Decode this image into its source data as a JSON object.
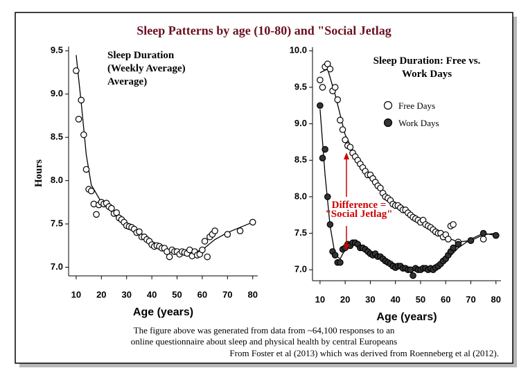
{
  "title": "Sleep Patterns by age (10-80) and \"Social Jetlag",
  "footnote": [
    "The figure above was generated from data from ~64,100 responses to an",
    "online questionnaire about sleep and physical health by central Europeans",
    "From Foster et al (2013) which was derived from Roenneberg et al (2012)."
  ],
  "chart_data": [
    {
      "type": "scatter",
      "annotation": [
        "Sleep Duration",
        "(Weekly Average)",
        "Average)"
      ],
      "ylabel": "Hours",
      "xlabel": "Age (years)",
      "xlim": [
        7,
        82
      ],
      "ylim": [
        6.9,
        9.55
      ],
      "xticks": [
        10,
        20,
        30,
        40,
        50,
        60,
        70,
        80
      ],
      "yticks": [
        {
          "value": 7,
          "label": "7.0"
        },
        7.5,
        {
          "value": 8,
          "label": "8.0"
        },
        8.5,
        {
          "value": 9,
          "label": "9.0"
        },
        9.5
      ],
      "series": [
        {
          "color": "#ffffff",
          "x": [
            10,
            11,
            12,
            13,
            14,
            15,
            16,
            17,
            18,
            19,
            20,
            21,
            22,
            23,
            24,
            25,
            26,
            27,
            28,
            29,
            30,
            31,
            32,
            33,
            34,
            35,
            36,
            37,
            38,
            39,
            40,
            41,
            42,
            43,
            44,
            45,
            46,
            47,
            48,
            49,
            50,
            51,
            52,
            53,
            54,
            55,
            56,
            57,
            58,
            59,
            60,
            61,
            62,
            63,
            64,
            65,
            70,
            75,
            80
          ],
          "values": [
            9.27,
            8.71,
            8.93,
            8.53,
            8.13,
            7.9,
            7.88,
            7.73,
            7.61,
            7.72,
            7.75,
            7.73,
            7.74,
            7.7,
            7.68,
            7.62,
            7.63,
            7.57,
            7.55,
            7.52,
            7.48,
            7.47,
            7.46,
            7.44,
            7.4,
            7.41,
            7.35,
            7.35,
            7.32,
            7.3,
            7.26,
            7.24,
            7.25,
            7.24,
            7.22,
            7.22,
            7.18,
            7.12,
            7.2,
            7.18,
            7.18,
            7.15,
            7.18,
            7.17,
            7.16,
            7.2,
            7.13,
            7.18,
            7.14,
            7.15,
            7.2,
            7.3,
            7.12,
            7.35,
            7.38,
            7.42,
            7.38,
            7.42,
            7.52
          ]
        }
      ],
      "fit_lines": [
        {
          "x": [
            10,
            12,
            14,
            16,
            20,
            25,
            30,
            35,
            40,
            45,
            50,
            55,
            60,
            65,
            70,
            75,
            80
          ],
          "values": [
            9.45,
            8.9,
            8.3,
            7.95,
            7.75,
            7.63,
            7.5,
            7.4,
            7.3,
            7.22,
            7.18,
            7.16,
            7.2,
            7.32,
            7.4,
            7.46,
            7.52
          ]
        }
      ]
    },
    {
      "type": "scatter",
      "annotation": [
        "Sleep Duration: Free vs.",
        "Work Days"
      ],
      "xlabel": "Age (years)",
      "note": [
        "Difference =",
        "\"Social Jetlag\""
      ],
      "note_color": "#cc0000",
      "xlim": [
        7,
        82
      ],
      "ylim": [
        6.85,
        10.05
      ],
      "xticks": [
        10,
        20,
        30,
        40,
        50,
        60,
        70,
        80
      ],
      "yticks": [
        {
          "value": 7,
          "label": "7.0"
        },
        7.5,
        {
          "value": 8,
          "label": "8.0"
        },
        8.5,
        {
          "value": 9,
          "label": "9.0"
        },
        9.5,
        {
          "value": 10,
          "label": "10.0"
        }
      ],
      "series": [
        {
          "name": "Free Days",
          "color": "#ffffff",
          "x": [
            10,
            11,
            12,
            13,
            14,
            15,
            16,
            17,
            18,
            19,
            20,
            21,
            22,
            23,
            24,
            25,
            26,
            27,
            28,
            29,
            30,
            31,
            32,
            33,
            34,
            35,
            36,
            37,
            38,
            39,
            40,
            41,
            42,
            43,
            44,
            45,
            46,
            47,
            48,
            49,
            50,
            51,
            52,
            53,
            54,
            55,
            56,
            57,
            58,
            59,
            60,
            61,
            62,
            63,
            65,
            70,
            75,
            80
          ],
          "values": [
            9.6,
            9.5,
            9.78,
            9.82,
            9.75,
            9.45,
            9.5,
            9.33,
            9.05,
            8.92,
            8.78,
            8.7,
            8.68,
            8.6,
            8.55,
            8.5,
            8.45,
            8.4,
            8.35,
            8.3,
            8.3,
            8.25,
            8.2,
            8.15,
            8.12,
            8.05,
            8.0,
            7.98,
            7.95,
            7.9,
            7.88,
            7.88,
            7.85,
            7.82,
            7.82,
            7.78,
            7.75,
            7.72,
            7.7,
            7.68,
            7.65,
            7.68,
            7.62,
            7.6,
            7.58,
            7.55,
            7.52,
            7.5,
            7.5,
            7.45,
            7.48,
            7.42,
            7.6,
            7.62,
            7.38,
            7.4,
            7.42,
            7.47
          ]
        },
        {
          "name": "Work Days",
          "color": "#333333",
          "x": [
            10,
            11,
            12,
            13,
            14,
            15,
            16,
            17,
            18,
            19,
            20,
            21,
            22,
            23,
            24,
            25,
            26,
            27,
            28,
            29,
            30,
            31,
            32,
            33,
            34,
            35,
            36,
            37,
            38,
            39,
            40,
            41,
            42,
            43,
            44,
            45,
            46,
            47,
            48,
            49,
            50,
            51,
            52,
            53,
            54,
            55,
            56,
            57,
            58,
            59,
            60,
            61,
            62,
            63,
            65,
            70,
            75,
            80
          ],
          "values": [
            9.25,
            8.53,
            8.65,
            8.0,
            7.62,
            7.25,
            7.2,
            7.1,
            7.1,
            7.28,
            7.3,
            7.35,
            7.33,
            7.37,
            7.37,
            7.35,
            7.3,
            7.3,
            7.28,
            7.25,
            7.22,
            7.2,
            7.22,
            7.18,
            7.18,
            7.15,
            7.12,
            7.1,
            7.08,
            7.05,
            7.03,
            7.05,
            7.05,
            7.02,
            7.02,
            7.0,
            7.0,
            6.92,
            7.02,
            7.0,
            7.0,
            7.02,
            7.02,
            7.0,
            7.02,
            7.0,
            7.03,
            7.05,
            7.08,
            7.12,
            7.15,
            7.2,
            7.25,
            7.3,
            7.35,
            7.4,
            7.5,
            7.47
          ]
        }
      ],
      "fit_lines": [
        {
          "x": [
            10,
            13,
            16,
            20,
            25,
            30,
            35,
            40,
            45,
            50,
            55,
            60,
            65,
            70,
            75,
            80
          ],
          "values": [
            9.7,
            9.75,
            9.4,
            8.85,
            8.5,
            8.25,
            8.05,
            7.88,
            7.75,
            7.65,
            7.55,
            7.45,
            7.38,
            7.4,
            7.48,
            7.5
          ]
        },
        {
          "x": [
            10,
            12,
            14,
            16,
            18,
            20,
            23,
            30,
            40,
            50,
            55,
            60,
            65,
            70,
            75,
            80
          ],
          "values": [
            9.2,
            8.3,
            7.6,
            7.2,
            7.15,
            7.28,
            7.35,
            7.22,
            7.08,
            7.0,
            7.02,
            7.12,
            7.3,
            7.42,
            7.5,
            7.47
          ]
        }
      ]
    }
  ]
}
